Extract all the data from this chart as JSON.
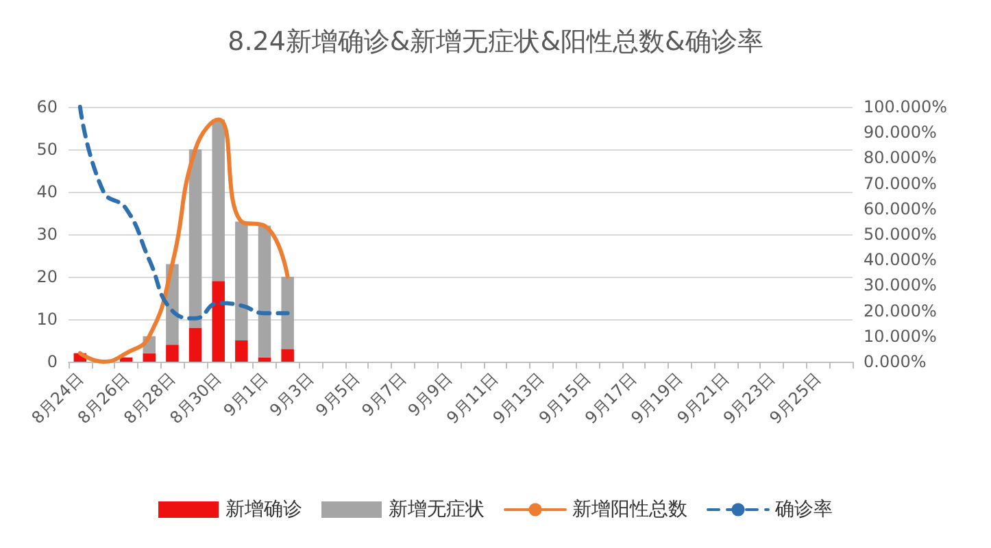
{
  "chart_data": {
    "type": "bar",
    "title": "8.24新增确诊&新增无症状&阳性总数&确诊率",
    "categories": [
      "8月24日",
      null,
      "8月26日",
      null,
      "8月28日",
      null,
      "8月30日",
      null,
      "9月1日",
      null,
      "9月3日",
      null,
      "9月5日",
      null,
      "9月7日",
      null,
      "9月9日",
      null,
      "9月11日",
      null,
      "9月13日",
      null,
      "9月15日",
      null,
      "9月17日",
      null,
      "9月19日",
      null,
      "9月21日",
      null,
      "9月23日",
      null,
      "9月25日",
      null
    ],
    "stacked": true,
    "series": [
      {
        "name": "新增确诊",
        "color": "#ee1111",
        "values": [
          2,
          0,
          1,
          2,
          4,
          8,
          19,
          5,
          1,
          3,
          null,
          null,
          null,
          null,
          null,
          null,
          null,
          null,
          null,
          null,
          null,
          null,
          null,
          null,
          null,
          null,
          null,
          null,
          null,
          null,
          null,
          null,
          null,
          null
        ]
      },
      {
        "name": "新增无症状",
        "color": "#a5a5a5",
        "values": [
          0,
          0,
          null,
          4,
          19,
          42,
          38,
          28,
          31,
          17,
          null,
          null,
          null,
          null,
          null,
          null,
          null,
          null,
          null,
          null,
          null,
          null,
          null,
          null,
          null,
          null,
          null,
          null,
          null,
          null,
          null,
          null,
          null,
          null
        ]
      },
      {
        "name": "新增阳性总数",
        "type": "line",
        "color": "#ed7d31",
        "line_style": "solid",
        "values": [
          2,
          0,
          2,
          6,
          23,
          50,
          57,
          33,
          32,
          20,
          null,
          null,
          null,
          null,
          null,
          null,
          null,
          null,
          null,
          null,
          null,
          null,
          null,
          null,
          null,
          null,
          null,
          null,
          null,
          null,
          null,
          null,
          null,
          null
        ]
      },
      {
        "name": "确诊率",
        "type": "line",
        "axis": "y2",
        "color": "#2e6faf",
        "line_style": "dashed",
        "values": [
          100,
          67,
          60,
          40,
          20,
          17,
          23,
          22,
          19,
          19,
          null,
          null,
          null,
          null,
          null,
          null,
          null,
          null,
          null,
          null,
          null,
          null,
          null,
          null,
          null,
          null,
          null,
          null,
          null,
          null,
          null,
          null,
          null,
          null
        ]
      }
    ],
    "ylim": [
      0,
      60
    ],
    "yticks": [
      0,
      10,
      20,
      30,
      40,
      50,
      60
    ],
    "y2lim": [
      0,
      100
    ],
    "y2ticks": [
      {
        "value": 0,
        "label": "0.000%"
      },
      {
        "value": 10,
        "label": "10.000%"
      },
      {
        "value": 20,
        "label": "20.000%"
      },
      {
        "value": 30,
        "label": "30.000%"
      },
      {
        "value": 40,
        "label": "40.000%"
      },
      {
        "value": 50,
        "label": "50.000%"
      },
      {
        "value": 60,
        "label": "60.000%"
      },
      {
        "value": 70,
        "label": "70.000%"
      },
      {
        "value": 80,
        "label": "80.000%"
      },
      {
        "value": 90,
        "label": "90.000%"
      },
      {
        "value": 100,
        "label": "100.000%"
      }
    ],
    "grid": "y",
    "legend": "bottom",
    "marker": "none"
  }
}
